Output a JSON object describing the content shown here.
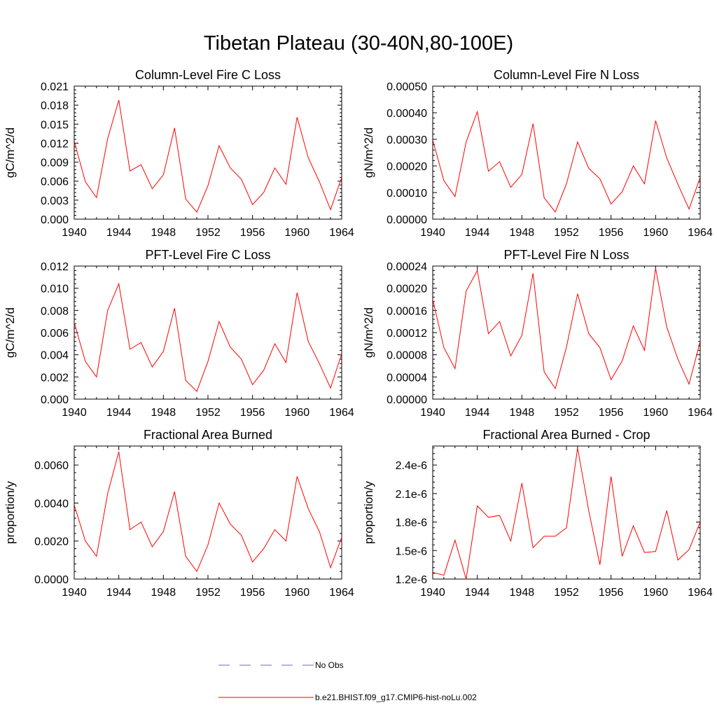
{
  "figure": {
    "title": "Tibetan Plateau (30-40N,80-100E)"
  },
  "legend": {
    "items": [
      {
        "label": "No Obs",
        "color": "#6a6ac8",
        "dash": true
      },
      {
        "label": "b.e21.BHIST.f09_g17.CMIP6-hist-noLu.002",
        "color": "#ff0000",
        "dash": false
      }
    ]
  },
  "chart_data": [
    {
      "type": "line",
      "title": "Column-Level Fire C Loss",
      "ylabel": "gC/m^2/d",
      "xlabel": "",
      "xlim": [
        1940,
        1964
      ],
      "ylim": [
        0,
        0.021
      ],
      "xticks": [
        1940,
        1944,
        1948,
        1952,
        1956,
        1960,
        1964
      ],
      "xticklabels": [
        "1940",
        "1944",
        "1948",
        "1952",
        "1956",
        "1960",
        "1964"
      ],
      "yticks": [
        0,
        0.003,
        0.006,
        0.009,
        0.012,
        0.015,
        0.018,
        0.021
      ],
      "yticklabels": [
        "0.000",
        "0.003",
        "0.006",
        "0.009",
        "0.012",
        "0.015",
        "0.018",
        "0.021"
      ],
      "x": [
        1940,
        1941,
        1942,
        1943,
        1944,
        1945,
        1946,
        1947,
        1948,
        1949,
        1950,
        1951,
        1952,
        1953,
        1954,
        1955,
        1956,
        1957,
        1958,
        1959,
        1960,
        1961,
        1962,
        1963,
        1964
      ],
      "series": [
        {
          "name": "b.e21.BHIST.f09_g17.CMIP6-hist-noLu.002",
          "color": "#ff0000",
          "values": [
            0.0123,
            0.0059,
            0.0034,
            0.0127,
            0.0188,
            0.0076,
            0.0086,
            0.0048,
            0.007,
            0.0144,
            0.0032,
            0.0011,
            0.0053,
            0.0116,
            0.0081,
            0.0063,
            0.0023,
            0.0042,
            0.0081,
            0.0055,
            0.0161,
            0.0097,
            0.0059,
            0.0015,
            0.0066
          ]
        }
      ]
    },
    {
      "type": "line",
      "title": "Column-Level Fire N Loss",
      "ylabel": "gN/m^2/d",
      "xlabel": "",
      "xlim": [
        1940,
        1964
      ],
      "ylim": [
        0,
        0.0005
      ],
      "xticks": [
        1940,
        1944,
        1948,
        1952,
        1956,
        1960,
        1964
      ],
      "xticklabels": [
        "1940",
        "1944",
        "1948",
        "1952",
        "1956",
        "1960",
        "1964"
      ],
      "yticks": [
        0,
        0.0001,
        0.0002,
        0.0003,
        0.0004,
        0.0005
      ],
      "yticklabels": [
        "0.00000",
        "0.00010",
        "0.00020",
        "0.00030",
        "0.00040",
        "0.00050"
      ],
      "x": [
        1940,
        1941,
        1942,
        1943,
        1944,
        1945,
        1946,
        1947,
        1948,
        1949,
        1950,
        1951,
        1952,
        1953,
        1954,
        1955,
        1956,
        1957,
        1958,
        1959,
        1960,
        1961,
        1962,
        1963,
        1964
      ],
      "series": [
        {
          "name": "b.e21.BHIST.f09_g17.CMIP6-hist-noLu.002",
          "color": "#ff0000",
          "values": [
            0.000298,
            0.000145,
            8.5e-05,
            0.00029,
            0.000404,
            0.00018,
            0.000216,
            0.00012,
            0.000168,
            0.000359,
            8e-05,
            2.7e-05,
            0.000133,
            0.00029,
            0.000191,
            0.000152,
            5.7e-05,
            0.000103,
            0.0002,
            0.000133,
            0.00037,
            0.00023,
            0.000131,
            3.8e-05,
            0.000157
          ]
        }
      ]
    },
    {
      "type": "line",
      "title": "PFT-Level Fire C Loss",
      "ylabel": "gC/m^2/d",
      "xlabel": "",
      "xlim": [
        1940,
        1964
      ],
      "ylim": [
        0,
        0.012
      ],
      "xticks": [
        1940,
        1944,
        1948,
        1952,
        1956,
        1960,
        1964
      ],
      "xticklabels": [
        "1940",
        "1944",
        "1948",
        "1952",
        "1956",
        "1960",
        "1964"
      ],
      "yticks": [
        0,
        0.002,
        0.004,
        0.006,
        0.008,
        0.01,
        0.012
      ],
      "yticklabels": [
        "0.000",
        "0.002",
        "0.004",
        "0.006",
        "0.008",
        "0.010",
        "0.012"
      ],
      "x": [
        1940,
        1941,
        1942,
        1943,
        1944,
        1945,
        1946,
        1947,
        1948,
        1949,
        1950,
        1951,
        1952,
        1953,
        1954,
        1955,
        1956,
        1957,
        1958,
        1959,
        1960,
        1961,
        1962,
        1963,
        1964
      ],
      "series": [
        {
          "name": "b.e21.BHIST.f09_g17.CMIP6-hist-noLu.002",
          "color": "#ff0000",
          "values": [
            0.0069,
            0.0034,
            0.002,
            0.008,
            0.0104,
            0.0045,
            0.0051,
            0.0029,
            0.0043,
            0.0082,
            0.0017,
            0.0007,
            0.0034,
            0.007,
            0.0047,
            0.0036,
            0.0013,
            0.0026,
            0.005,
            0.0033,
            0.0096,
            0.0052,
            0.0032,
            0.001,
            0.0041
          ]
        }
      ]
    },
    {
      "type": "line",
      "title": "PFT-Level Fire N Loss",
      "ylabel": "gN/m^2/d",
      "xlabel": "",
      "xlim": [
        1940,
        1964
      ],
      "ylim": [
        0,
        0.00024
      ],
      "xticks": [
        1940,
        1944,
        1948,
        1952,
        1956,
        1960,
        1964
      ],
      "xticklabels": [
        "1940",
        "1944",
        "1948",
        "1952",
        "1956",
        "1960",
        "1964"
      ],
      "yticks": [
        0,
        4e-05,
        8e-05,
        0.00012,
        0.00016,
        0.0002,
        0.00024
      ],
      "yticklabels": [
        "0.00000",
        "0.00004",
        "0.00008",
        "0.00012",
        "0.00016",
        "0.00020",
        "0.00024"
      ],
      "x": [
        1940,
        1941,
        1942,
        1943,
        1944,
        1945,
        1946,
        1947,
        1948,
        1949,
        1950,
        1951,
        1952,
        1953,
        1954,
        1955,
        1956,
        1957,
        1958,
        1959,
        1960,
        1961,
        1962,
        1963,
        1964
      ],
      "series": [
        {
          "name": "b.e21.BHIST.f09_g17.CMIP6-hist-noLu.002",
          "color": "#ff0000",
          "values": [
            0.00018,
            9.3e-05,
            5.5e-05,
            0.000195,
            0.000232,
            0.000118,
            0.00014,
            7.8e-05,
            0.000115,
            0.000227,
            4.9e-05,
            1.9e-05,
            9.4e-05,
            0.00019,
            0.000118,
            9.3e-05,
            3.5e-05,
            6.9e-05,
            0.000132,
            8.8e-05,
            0.000236,
            0.00013,
            7.2e-05,
            2.7e-05,
            0.000104
          ]
        }
      ]
    },
    {
      "type": "line",
      "title": "Fractional Area Burned",
      "ylabel": "proportion/y",
      "xlabel": "",
      "xlim": [
        1940,
        1964
      ],
      "ylim": [
        0,
        0.007
      ],
      "xticks": [
        1940,
        1944,
        1948,
        1952,
        1956,
        1960,
        1964
      ],
      "xticklabels": [
        "1940",
        "1944",
        "1948",
        "1952",
        "1956",
        "1960",
        "1964"
      ],
      "yticks": [
        0,
        0.002,
        0.004,
        0.006
      ],
      "yticklabels": [
        "0.0000",
        "0.0020",
        "0.0040",
        "0.0060"
      ],
      "x": [
        1940,
        1941,
        1942,
        1943,
        1944,
        1945,
        1946,
        1947,
        1948,
        1949,
        1950,
        1951,
        1952,
        1953,
        1954,
        1955,
        1956,
        1957,
        1958,
        1959,
        1960,
        1961,
        1962,
        1963,
        1964
      ],
      "series": [
        {
          "name": "b.e21.BHIST.f09_g17.CMIP6-hist-noLu.002",
          "color": "#ff0000",
          "values": [
            0.0039,
            0.002,
            0.0012,
            0.0045,
            0.0067,
            0.0026,
            0.003,
            0.0017,
            0.0025,
            0.0046,
            0.0012,
            0.0004,
            0.0018,
            0.004,
            0.0029,
            0.0023,
            0.0009,
            0.0016,
            0.0026,
            0.002,
            0.0054,
            0.0037,
            0.0025,
            0.0006,
            0.0022
          ]
        }
      ]
    },
    {
      "type": "line",
      "title": "Fractional Area Burned - Crop",
      "ylabel": "proportion/y",
      "xlabel": "",
      "xlim": [
        1940,
        1964
      ],
      "ylim": [
        1.2e-06,
        2.6e-06
      ],
      "xticks": [
        1940,
        1944,
        1948,
        1952,
        1956,
        1960,
        1964
      ],
      "xticklabels": [
        "1940",
        "1944",
        "1948",
        "1952",
        "1956",
        "1960",
        "1964"
      ],
      "yticks": [
        1.2e-06,
        1.5e-06,
        1.8e-06,
        2.1e-06,
        2.4e-06
      ],
      "yticklabels": [
        "1.2e-6",
        "1.5e-6",
        "1.8e-6",
        "2.1e-6",
        "2.4e-6"
      ],
      "x": [
        1940,
        1941,
        1942,
        1943,
        1944,
        1945,
        1946,
        1947,
        1948,
        1949,
        1950,
        1951,
        1952,
        1953,
        1954,
        1955,
        1956,
        1957,
        1958,
        1959,
        1960,
        1961,
        1962,
        1963,
        1964
      ],
      "series": [
        {
          "name": "b.e21.BHIST.f09_g17.CMIP6-hist-noLu.002",
          "color": "#ff0000",
          "values": [
            1.27e-06,
            1.24e-06,
            1.61e-06,
            1.2e-06,
            1.97e-06,
            1.85e-06,
            1.87e-06,
            1.6e-06,
            2.21e-06,
            1.53e-06,
            1.65e-06,
            1.65e-06,
            1.74e-06,
            2.58e-06,
            1.92e-06,
            1.35e-06,
            2.28e-06,
            1.44e-06,
            1.76e-06,
            1.48e-06,
            1.49e-06,
            1.92e-06,
            1.4e-06,
            1.51e-06,
            1.8e-06
          ]
        }
      ]
    }
  ]
}
